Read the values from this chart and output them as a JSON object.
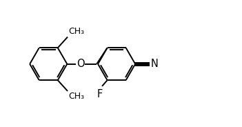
{
  "background_color": "#ffffff",
  "line_color": "#000000",
  "line_width": 1.4,
  "font_size": 9.5,
  "fig_width": 3.51,
  "fig_height": 1.84,
  "dpi": 100,
  "xlim": [
    -0.5,
    8.8
  ],
  "ylim": [
    -1.8,
    2.2
  ]
}
